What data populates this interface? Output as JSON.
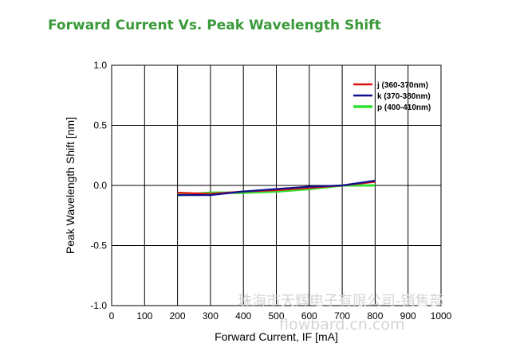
{
  "title": "Forward Current Vs. Peak Wavelength Shift",
  "watermarks": {
    "line1": "珠海市天辉电子有限公司-销售部",
    "line2": "flowbard.cn.com"
  },
  "colors": {
    "title": "#3a9a3a",
    "j": "#e01010",
    "k": "#101090",
    "p": "#30e030"
  },
  "chart_data": {
    "type": "line",
    "xlabel": "Forward Current, IF [mA]",
    "ylabel": "Peak Wavelength Shift [nm]",
    "xlim": [
      0,
      1000
    ],
    "ylim": [
      -1.0,
      1.0
    ],
    "x_ticks": [
      "0",
      "100",
      "200",
      "300",
      "400",
      "500",
      "600",
      "700",
      "800",
      "900",
      "1000"
    ],
    "y_ticks": [
      "1.0",
      "0.5",
      "0.0",
      "-0.5",
      "-1.0"
    ],
    "grid": true,
    "legend_position": "top-right",
    "series": [
      {
        "name": "j (360-370nm)",
        "color": "#e01010",
        "x": [
          200,
          300,
          400,
          500,
          600,
          700,
          800
        ],
        "y": [
          -0.06,
          -0.07,
          -0.05,
          -0.04,
          -0.02,
          0.0,
          0.03
        ]
      },
      {
        "name": "k (370-380nm)",
        "color": "#101090",
        "x": [
          200,
          300,
          400,
          500,
          600,
          700,
          800
        ],
        "y": [
          -0.08,
          -0.08,
          -0.05,
          -0.03,
          -0.01,
          0.0,
          0.04
        ]
      },
      {
        "name": "p (400-410nm)",
        "color": "#30e030",
        "x": [
          200,
          300,
          400,
          500,
          600,
          700,
          800
        ],
        "y": [
          -0.08,
          -0.06,
          -0.06,
          -0.05,
          -0.03,
          0.0,
          0.0
        ]
      }
    ]
  }
}
